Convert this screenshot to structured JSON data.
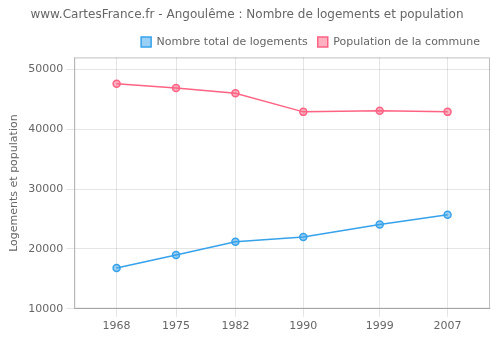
{
  "chart_data": {
    "type": "line",
    "title": "www.CartesFrance.fr - Angoulême : Nombre de logements et population",
    "ylabel": "Logements et population",
    "x": [
      1968,
      1975,
      1982,
      1990,
      1999,
      2007
    ],
    "series": [
      {
        "name": "Nombre total de logements",
        "values": [
          16800,
          19000,
          21200,
          22000,
          24100,
          25700
        ]
      },
      {
        "name": "Population de la commune",
        "values": [
          47600,
          46900,
          46000,
          42900,
          43100,
          42900
        ]
      }
    ],
    "xlim": [
      1963,
      2012
    ],
    "xticks": [
      1968,
      1975,
      1982,
      1990,
      1999,
      2007
    ],
    "ylim": [
      10000,
      52000
    ],
    "yticks": [
      10000,
      20000,
      30000,
      40000,
      50000
    ],
    "grid": true,
    "legend": "upper right",
    "marker": "circle"
  }
}
